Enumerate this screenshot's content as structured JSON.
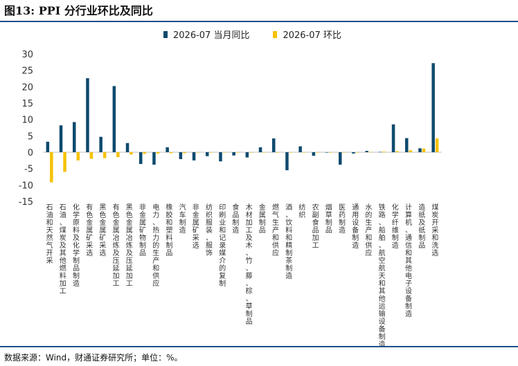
{
  "header": {
    "title": "图13: PPI 分行业环比及同比"
  },
  "footer": {
    "source": "数据来源：Wind，财通证券研究所；单位：%。"
  },
  "colors": {
    "rule": "#1b4f8a"
  },
  "chart_data": {
    "type": "bar",
    "title": "",
    "xlabel": "",
    "ylabel": "",
    "ylim": [
      -15,
      30
    ],
    "yticks": [
      -15,
      -10,
      -5,
      0,
      5,
      10,
      15,
      20,
      25,
      30
    ],
    "legend_position": "top",
    "categories": [
      "石油和天然气开采",
      "石油、煤炭及其他燃料加工",
      "化学原料及化学制品制造",
      "有色金属矿采选",
      "黑色金属矿采选",
      "有色金属冶炼及压延加工",
      "黑色金属冶炼及压延加工",
      "非金属矿物制品",
      "电力、热力的生产和供应",
      "橡胶和塑料制品",
      "汽车制造",
      "非金属矿采选",
      "纺织服装、服饰",
      "印刷业和记录媒介的复制",
      "食品制造",
      "木材加工及木、竹、藤、棕、草制品",
      "金属制品",
      "燃气生产和供应",
      "酒、饮料和精制茶制造",
      "纺织",
      "农副食品加工",
      "烟草制品",
      "医药制造",
      "通用设备制造",
      "水的生产和供应",
      "铁路、船舶、航空航天和其他运输设备制造",
      "化学纤维制造",
      "计算机、通信和其他电子设备制造",
      "造纸及纸制品",
      "煤炭开采和洗选"
    ],
    "series": [
      {
        "name": "2026-07 当月同比",
        "color": "#0e4a6e",
        "values": [
          3.2,
          8.2,
          9.2,
          22.6,
          4.7,
          20.2,
          2.8,
          -3.6,
          -3.8,
          1.5,
          -2.1,
          -2.5,
          -1.2,
          -2.8,
          -1.0,
          -1.6,
          1.5,
          4.2,
          -5.5,
          1.8,
          -1.1,
          0.0,
          -3.8,
          -0.4,
          0.4,
          0.1,
          8.5,
          4.3,
          1.2,
          27.2
        ]
      },
      {
        "name": "2026-07 环比",
        "color": "#f5c200",
        "values": [
          -9.2,
          -6.0,
          -2.5,
          -2.0,
          -1.8,
          -1.5,
          -0.7,
          -0.5,
          -0.4,
          -0.3,
          -0.3,
          -0.1,
          -0.1,
          -0.1,
          -0.1,
          0.0,
          0.0,
          0.0,
          0.0,
          0.0,
          0.0,
          0.0,
          0.0,
          0.0,
          0.1,
          0.2,
          0.3,
          0.6,
          1.1,
          4.2
        ]
      }
    ]
  }
}
